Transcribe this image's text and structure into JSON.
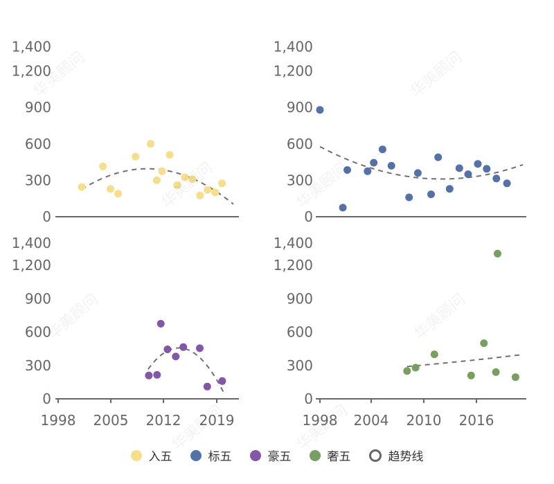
{
  "watermark_text": "华美顾问",
  "chart_data": [
    {
      "type": "scatter",
      "series_name": "入五",
      "color": "#F5DE8C",
      "x": [
        2001,
        2003.8,
        2004.8,
        2005.8,
        2008.1,
        2010.1,
        2010.9,
        2011.6,
        2012.6,
        2013.6,
        2014.6,
        2015.6,
        2016.6,
        2017.6,
        2018.6,
        2019.5
      ],
      "y": [
        245,
        415,
        230,
        190,
        495,
        600,
        300,
        375,
        510,
        260,
        325,
        310,
        175,
        220,
        200,
        275
      ],
      "trend": "quadratic",
      "yticks": [
        0,
        300,
        600,
        900,
        1200,
        1400
      ],
      "xticks": [],
      "ylim": [
        0,
        1400
      ]
    },
    {
      "type": "scatter",
      "series_name": "标五",
      "color": "#5572A8",
      "x": [
        1998,
        2000.6,
        2001.1,
        2003.4,
        2004.1,
        2005.1,
        2006.1,
        2008.1,
        2009.1,
        2010.6,
        2011.4,
        2012.7,
        2013.8,
        2014.8,
        2015.9,
        2016.9,
        2018,
        2019.2
      ],
      "y": [
        880,
        75,
        385,
        375,
        445,
        555,
        420,
        160,
        360,
        185,
        490,
        230,
        400,
        350,
        435,
        395,
        315,
        275
      ],
      "trend": "quadratic",
      "yticks": [
        0,
        300,
        600,
        900,
        1200,
        1400
      ],
      "xticks": [],
      "ylim": [
        0,
        1400
      ]
    },
    {
      "type": "scatter",
      "series_name": "豪五",
      "color": "#8356A8",
      "x": [
        2010.1,
        2011.2,
        2011.7,
        2012.6,
        2013.7,
        2014.7,
        2016.9,
        2017.9,
        2019.9
      ],
      "y": [
        210,
        215,
        675,
        445,
        380,
        465,
        455,
        110,
        160
      ],
      "trend": "quadratic",
      "yticks": [
        0,
        300,
        600,
        900,
        1200,
        1400
      ],
      "xticks": [
        "1998",
        "2005",
        "2012",
        "2019"
      ],
      "ylim": [
        0,
        1400
      ]
    },
    {
      "type": "scatter",
      "series_name": "奢五",
      "color": "#779F5F",
      "x": [
        2008.2,
        2009.2,
        2011.4,
        2015.7,
        2017.2,
        2018.6,
        2018.8,
        2020.9
      ],
      "y": [
        250,
        280,
        400,
        210,
        500,
        240,
        1305,
        195
      ],
      "trend": "exponential",
      "yticks": [
        0,
        300,
        600,
        900,
        1200,
        1400
      ],
      "xticks": [
        "1998",
        "2004",
        "2010",
        "2016"
      ],
      "ylim": [
        0,
        1400
      ]
    }
  ],
  "legend": [
    {
      "label": "入五",
      "color": "#F5DE8C",
      "kind": "dot"
    },
    {
      "label": "标五",
      "color": "#5572A8",
      "kind": "dot"
    },
    {
      "label": "豪五",
      "color": "#8356A8",
      "kind": "dot"
    },
    {
      "label": "奢五",
      "color": "#779F5F",
      "kind": "dot"
    },
    {
      "label": "趋势线",
      "color": "#666666",
      "kind": "ring"
    }
  ]
}
